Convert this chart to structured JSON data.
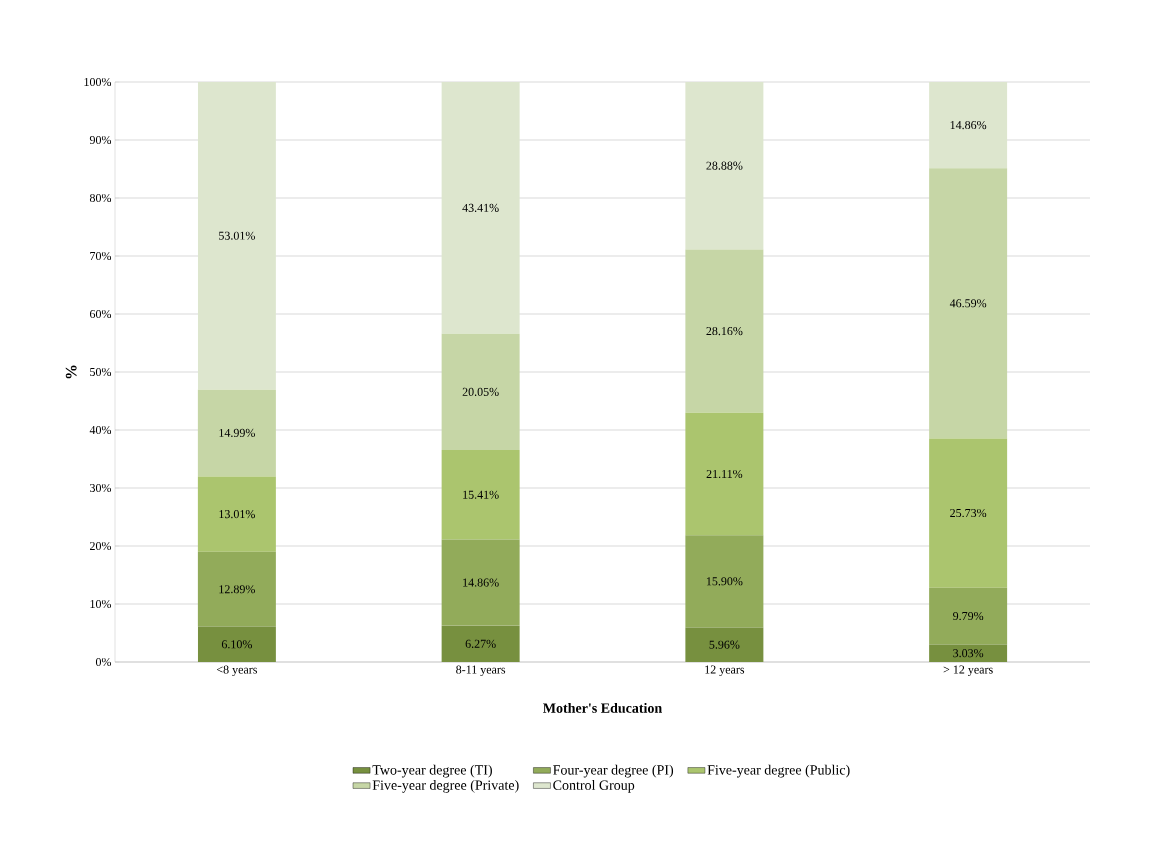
{
  "chart_data": {
    "type": "bar",
    "stacked": true,
    "xlabel": "Mother's Education",
    "ylabel": "%",
    "categories": [
      "<8 years",
      "8-11 years",
      "12 years",
      "> 12 years"
    ],
    "series": [
      {
        "name": "Two-year degree (TI)",
        "color": "#77903f",
        "values": [
          6.1,
          6.27,
          5.96,
          3.03
        ],
        "value_labels": [
          "6.10%",
          "6.27%",
          "5.96%",
          "3.03%"
        ]
      },
      {
        "name": "Four-year degree (PI)",
        "color": "#92ab5a",
        "values": [
          12.89,
          14.86,
          15.9,
          9.79
        ],
        "value_labels": [
          "12.89%",
          "14.86%",
          "15.90%",
          "9.79%"
        ]
      },
      {
        "name": "Five-year degree (Public)",
        "color": "#abc56e",
        "values": [
          13.01,
          15.41,
          21.11,
          25.73
        ],
        "value_labels": [
          "13.01%",
          "15.41%",
          "21.11%",
          "25.73%"
        ]
      },
      {
        "name": "Five-year degree (Private)",
        "color": "#c6d6a6",
        "values": [
          14.99,
          20.05,
          28.16,
          46.59
        ],
        "value_labels": [
          "14.99%",
          "20.05%",
          "28.16%",
          "46.59%"
        ]
      },
      {
        "name": "Control Group",
        "color": "#dde6ce",
        "values": [
          53.01,
          43.41,
          28.88,
          14.86
        ],
        "value_labels": [
          "53.01%",
          "43.41%",
          "28.88%",
          "14.86%"
        ]
      }
    ],
    "ylim": [
      0,
      100
    ],
    "yticks": [
      {
        "value": 0,
        "label": "0%"
      },
      {
        "value": 10,
        "label": "10%"
      },
      {
        "value": 20,
        "label": "20%"
      },
      {
        "value": 30,
        "label": "30%"
      },
      {
        "value": 40,
        "label": "40%"
      },
      {
        "value": 50,
        "label": "50%"
      },
      {
        "value": 60,
        "label": "60%"
      },
      {
        "value": 70,
        "label": "70%"
      },
      {
        "value": 80,
        "label": "80%"
      },
      {
        "value": 90,
        "label": "90%"
      },
      {
        "value": 100,
        "label": "100%"
      }
    ],
    "grid": "y",
    "legend": "bottom"
  }
}
